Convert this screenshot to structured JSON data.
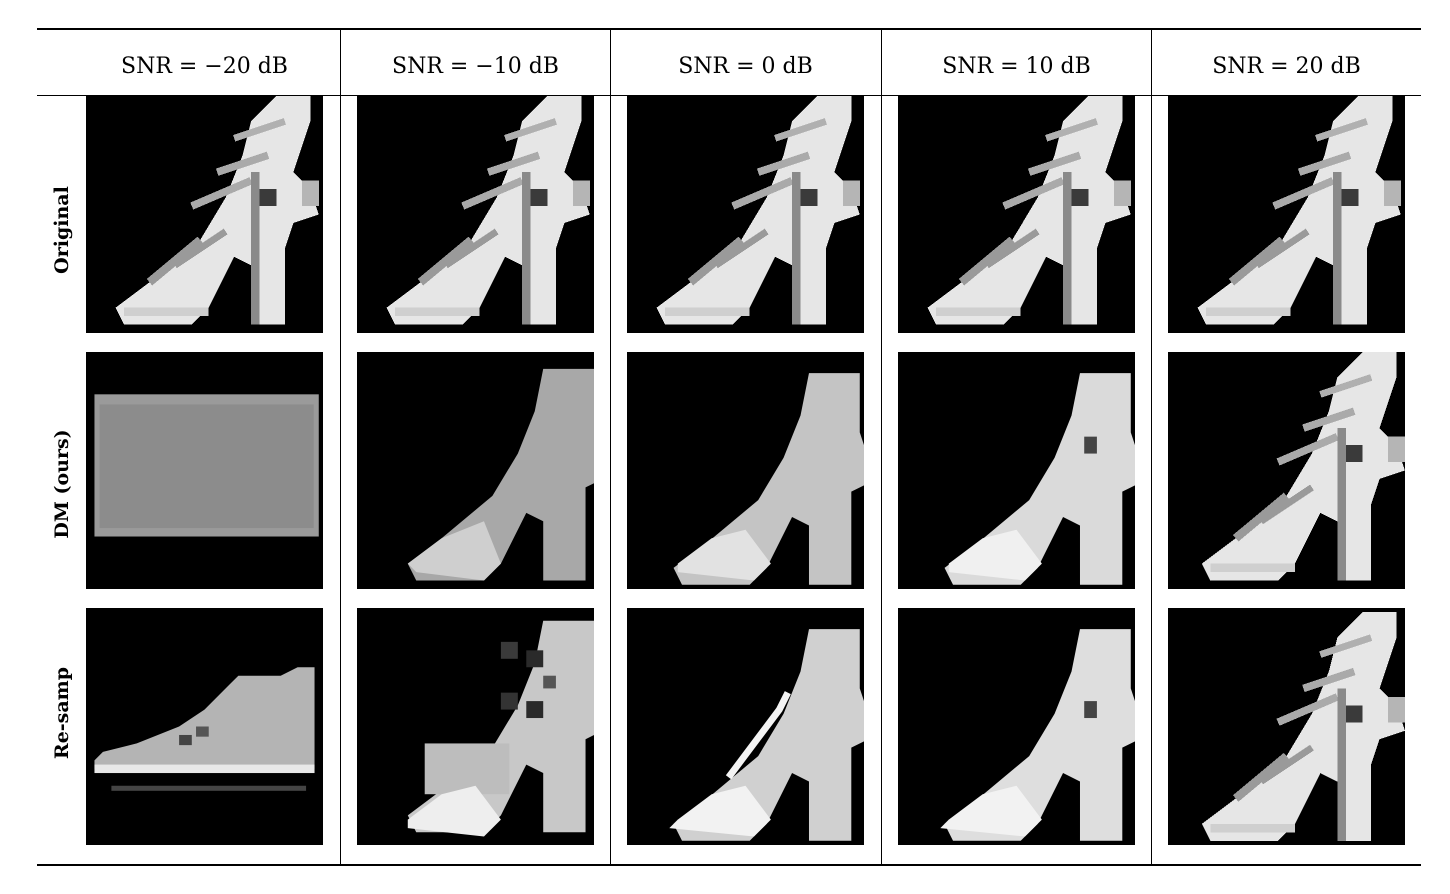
{
  "columns": [
    {
      "label": "SNR = −20 dB"
    },
    {
      "label": "SNR = −10 dB"
    },
    {
      "label": "SNR = 0 dB"
    },
    {
      "label": "SNR = 10 dB"
    },
    {
      "label": "SNR = 20 dB"
    }
  ],
  "rows": [
    {
      "label": "Original"
    },
    {
      "label": "DM (ours)"
    },
    {
      "label": "Re-samp"
    }
  ]
}
